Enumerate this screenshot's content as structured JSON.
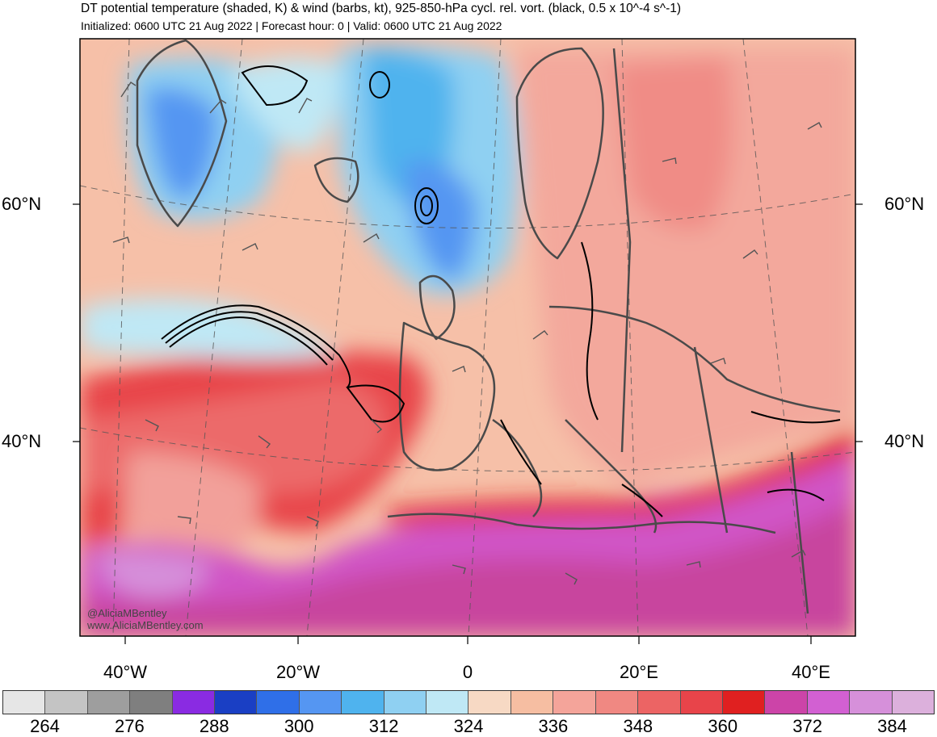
{
  "header": {
    "title": "DT potential temperature (shaded, K) & wind (barbs, kt), 925-850-hPa cycl. rel. vort. (black, 0.5 x 10^-4 s^-1)",
    "subtitle": "Initialized: 0600 UTC 21 Aug 2022 | Forecast hour: 0 | Valid: 0600 UTC 21 Aug 2022"
  },
  "map": {
    "lat_labels": [
      "60°N",
      "40°N"
    ],
    "lon_labels": [
      "40°W",
      "20°W",
      "0",
      "20°E",
      "40°E"
    ],
    "credits": [
      "@AliciaMBentley",
      "www.AliciaMBentley.com"
    ]
  },
  "colorbar": {
    "units": "K",
    "colors": [
      "#e6e6e6",
      "#c4c4c4",
      "#9e9e9e",
      "#7f7f7f",
      "#8a2be2",
      "#1a3fc4",
      "#2f6fe8",
      "#5596f2",
      "#4fb3ee",
      "#8fd0f2",
      "#bfe8f5",
      "#f7d9c4",
      "#f6bea2",
      "#f4a49a",
      "#f08882",
      "#ec6464",
      "#e8444a",
      "#e02020",
      "#cc44a8",
      "#d260d2",
      "#d690da",
      "#dcb0dc"
    ],
    "tick_labels": [
      "264",
      "276",
      "288",
      "300",
      "312",
      "324",
      "336",
      "348",
      "360",
      "372",
      "384"
    ]
  }
}
